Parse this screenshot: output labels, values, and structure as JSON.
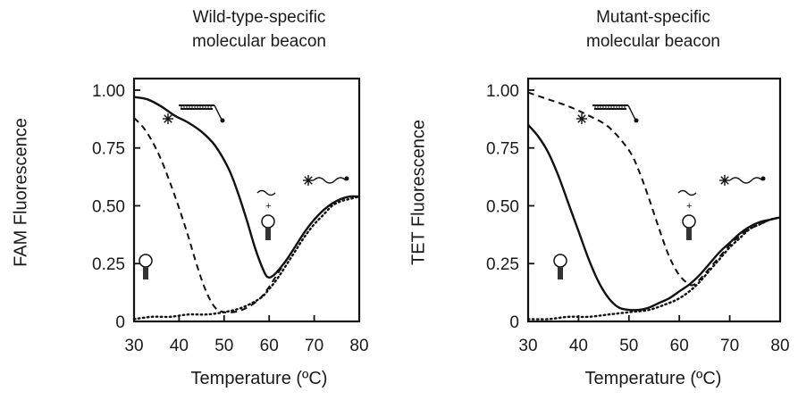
{
  "chart_data": [
    {
      "type": "line",
      "title": "Wild-type-specific molecular beacon",
      "title_lines": [
        "Wild-type-specific",
        "molecular beacon"
      ],
      "xlabel": "Temperature (ºC)",
      "ylabel": "FAM Fluorescence",
      "xlim": [
        30,
        80
      ],
      "ylim": [
        0,
        1.05
      ],
      "x_ticks": [
        30,
        40,
        50,
        60,
        70,
        80
      ],
      "x_tick_labels": [
        "30",
        "40",
        "50",
        "60",
        "70",
        "80"
      ],
      "y_ticks": [
        0,
        0.25,
        0.5,
        0.75,
        1.0
      ],
      "y_tick_labels": [
        "0",
        "0.25",
        "0.50",
        "0.75",
        "1.00"
      ],
      "grid": false,
      "legend": "none",
      "series": [
        {
          "style": "solid",
          "x": [
            30,
            33,
            36,
            39,
            42,
            45,
            48,
            51,
            53,
            55,
            57,
            59,
            60,
            61,
            62,
            64,
            66,
            68,
            70,
            72,
            74,
            76,
            78,
            80
          ],
          "y": [
            0.97,
            0.96,
            0.93,
            0.89,
            0.86,
            0.82,
            0.76,
            0.66,
            0.56,
            0.44,
            0.31,
            0.21,
            0.19,
            0.2,
            0.22,
            0.27,
            0.33,
            0.39,
            0.44,
            0.48,
            0.51,
            0.53,
            0.54,
            0.54
          ]
        },
        {
          "style": "dashed",
          "x": [
            30,
            32,
            34,
            36,
            38,
            40,
            42,
            44,
            46,
            48,
            50,
            52,
            54,
            56,
            58,
            60,
            62,
            64,
            66,
            68,
            70,
            72,
            74,
            76,
            78,
            80
          ],
          "y": [
            0.88,
            0.84,
            0.78,
            0.7,
            0.6,
            0.49,
            0.37,
            0.24,
            0.13,
            0.06,
            0.04,
            0.04,
            0.05,
            0.07,
            0.1,
            0.15,
            0.21,
            0.27,
            0.33,
            0.39,
            0.44,
            0.48,
            0.51,
            0.53,
            0.54,
            0.54
          ]
        },
        {
          "style": "dotted",
          "x": [
            30,
            34,
            38,
            42,
            46,
            50,
            54,
            58,
            60,
            62,
            64,
            66,
            68,
            70,
            72,
            74,
            76,
            78,
            80
          ],
          "y": [
            0.01,
            0.02,
            0.02,
            0.03,
            0.03,
            0.04,
            0.06,
            0.1,
            0.14,
            0.19,
            0.25,
            0.31,
            0.37,
            0.42,
            0.46,
            0.5,
            0.52,
            0.53,
            0.54
          ]
        }
      ],
      "icons": [
        "hybrid-duplex-icon",
        "random-coil-probe-icon",
        "hairpin-plus-target-icon",
        "hairpin-probe-icon"
      ]
    },
    {
      "type": "line",
      "title": "Mutant-specific molecular beacon",
      "title_lines": [
        "Mutant-specific",
        "molecular beacon"
      ],
      "xlabel": "Temperature (ºC)",
      "ylabel": "TET Fluorescence",
      "xlim": [
        30,
        80
      ],
      "ylim": [
        0,
        1.05
      ],
      "x_ticks": [
        30,
        40,
        50,
        60,
        70,
        80
      ],
      "x_tick_labels": [
        "30",
        "40",
        "50",
        "60",
        "70",
        "80"
      ],
      "y_ticks": [
        0,
        0.25,
        0.5,
        0.75,
        1.0
      ],
      "y_tick_labels": [
        "0",
        "0.25",
        "0.50",
        "0.75",
        "1.00"
      ],
      "grid": false,
      "legend": "none",
      "series": [
        {
          "style": "solid",
          "x": [
            30,
            32,
            34,
            36,
            38,
            40,
            42,
            44,
            46,
            48,
            50,
            52,
            54,
            56,
            58,
            60,
            62,
            64,
            66,
            68,
            70,
            72,
            74,
            76,
            78,
            80
          ],
          "y": [
            0.85,
            0.8,
            0.73,
            0.63,
            0.51,
            0.39,
            0.27,
            0.17,
            0.1,
            0.06,
            0.05,
            0.05,
            0.06,
            0.08,
            0.1,
            0.13,
            0.16,
            0.2,
            0.25,
            0.3,
            0.34,
            0.38,
            0.41,
            0.43,
            0.44,
            0.45
          ]
        },
        {
          "style": "dashed",
          "x": [
            30,
            34,
            38,
            42,
            46,
            50,
            52,
            54,
            56,
            58,
            60,
            62,
            63,
            64,
            66,
            68,
            70,
            72,
            74,
            76,
            78,
            80
          ],
          "y": [
            0.99,
            0.96,
            0.93,
            0.89,
            0.84,
            0.74,
            0.65,
            0.53,
            0.4,
            0.28,
            0.2,
            0.16,
            0.16,
            0.18,
            0.23,
            0.28,
            0.33,
            0.37,
            0.4,
            0.42,
            0.44,
            0.45
          ]
        },
        {
          "style": "dotted",
          "x": [
            30,
            34,
            38,
            42,
            46,
            50,
            54,
            58,
            60,
            62,
            64,
            66,
            68,
            70,
            72,
            74,
            76,
            78,
            80
          ],
          "y": [
            0.01,
            0.01,
            0.02,
            0.02,
            0.03,
            0.04,
            0.05,
            0.08,
            0.1,
            0.13,
            0.17,
            0.22,
            0.27,
            0.32,
            0.36,
            0.4,
            0.42,
            0.44,
            0.45
          ]
        }
      ],
      "icons": [
        "hybrid-duplex-icon",
        "random-coil-probe-icon",
        "hairpin-plus-target-icon",
        "hairpin-probe-icon"
      ]
    }
  ]
}
